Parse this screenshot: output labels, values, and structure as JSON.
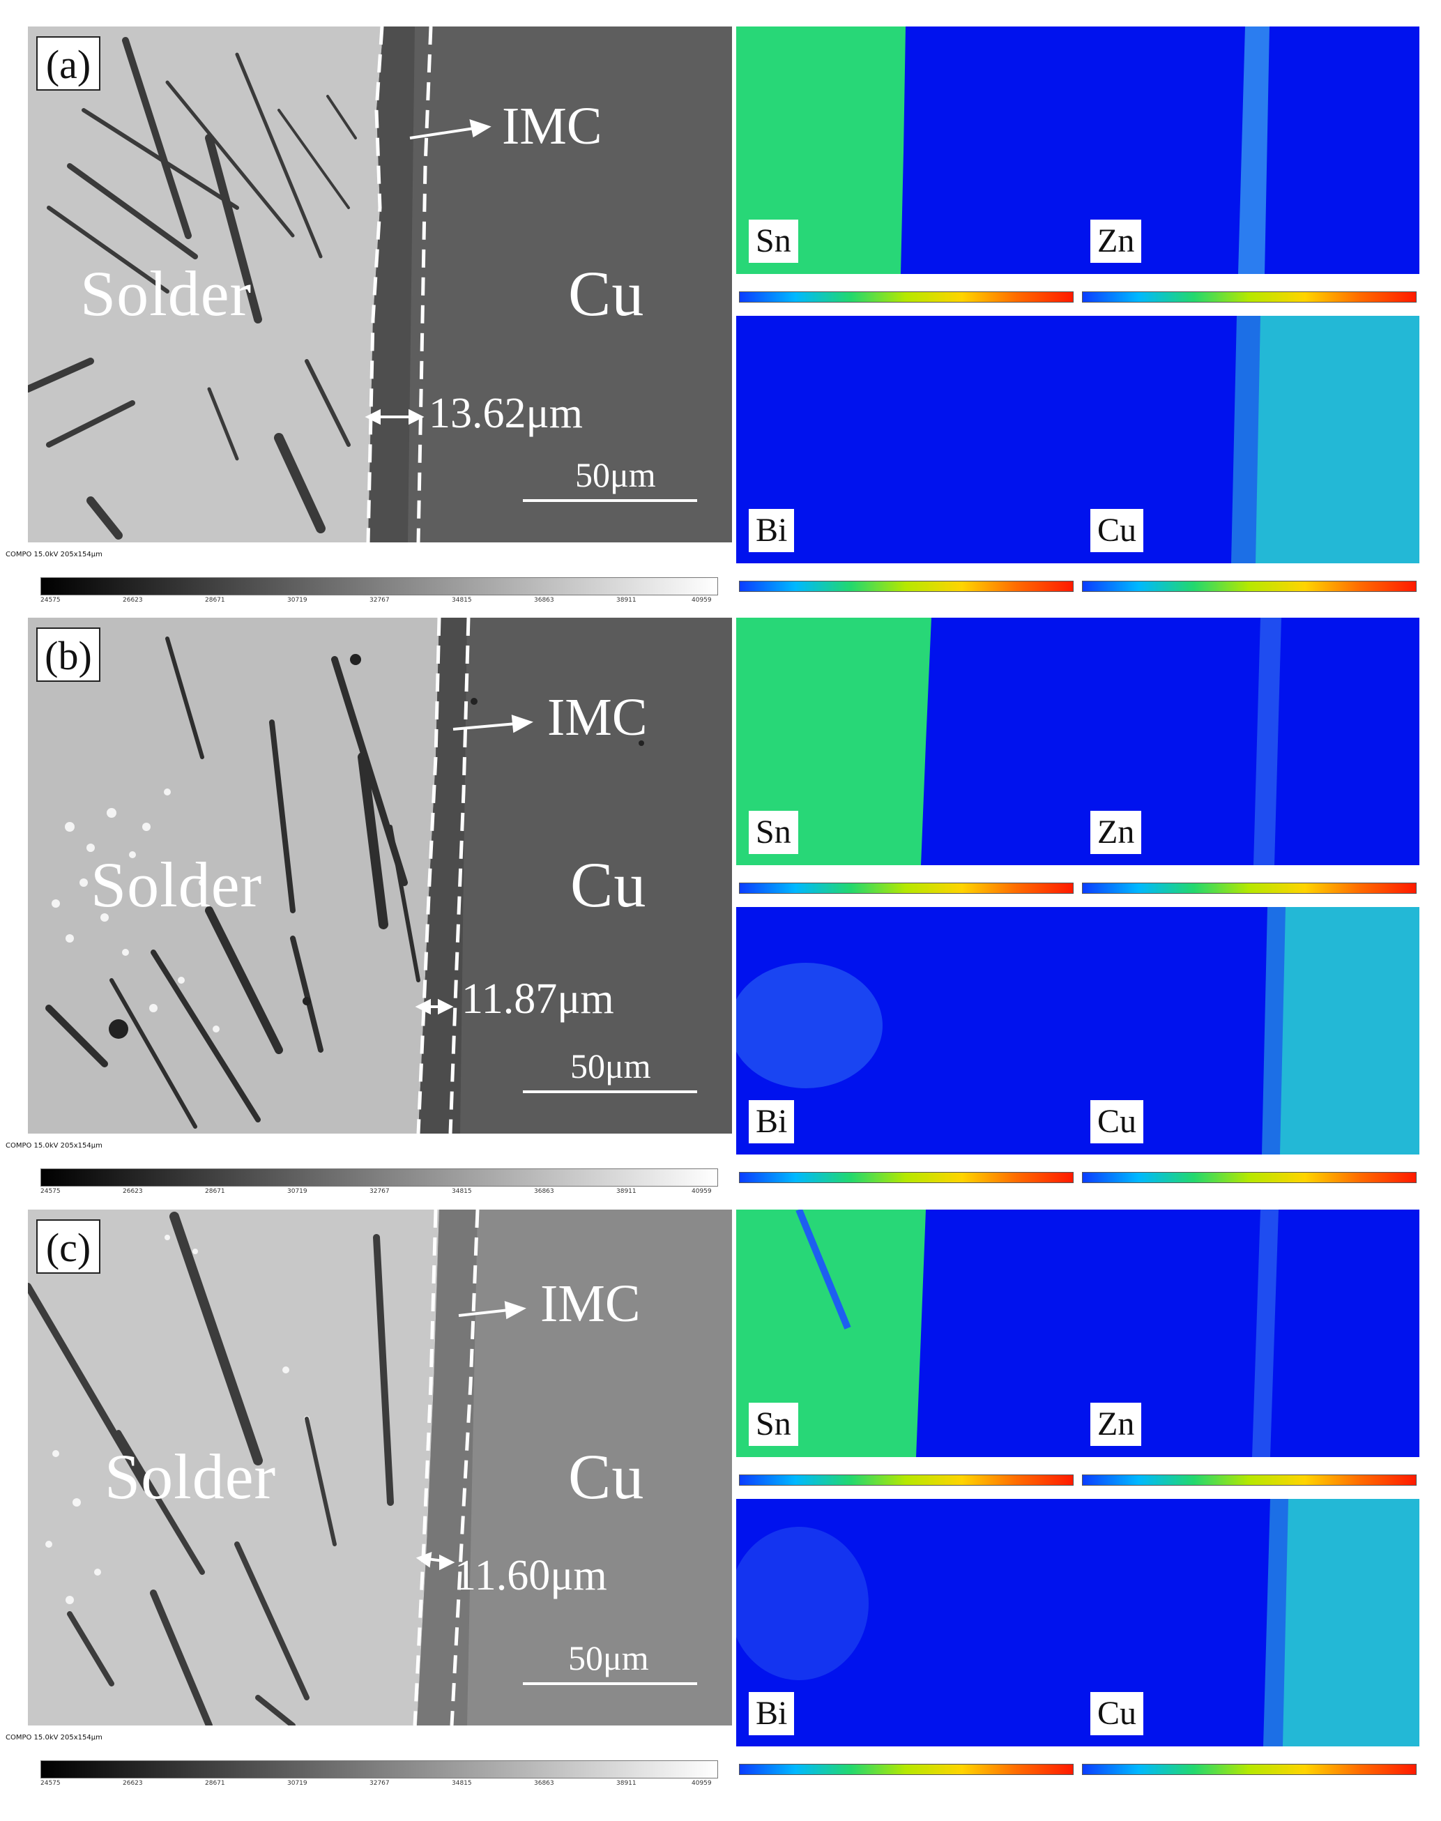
{
  "panels": [
    {
      "label": "(a)",
      "imc": "IMC",
      "solder": "Solder",
      "cu": "Cu",
      "thickness": "13.62μm",
      "scale": "50μm",
      "info": "COMPO 15.0kV 205x154μm",
      "maps": [
        "Sn",
        "Zn",
        "Bi",
        "Cu"
      ]
    },
    {
      "label": "(b)",
      "imc": "IMC",
      "solder": "Solder",
      "cu": "Cu",
      "thickness": "11.87μm",
      "scale": "50μm",
      "info": "COMPO 15.0kV 205x154μm",
      "maps": [
        "Sn",
        "Zn",
        "Bi",
        "Cu"
      ]
    },
    {
      "label": "(c)",
      "imc": "IMC",
      "solder": "Solder",
      "cu": "Cu",
      "thickness": "11.60μm",
      "scale": "50μm",
      "info": "COMPO 15.0kV 205x154μm",
      "maps": [
        "Sn",
        "Zn",
        "Bi",
        "Cu"
      ]
    }
  ],
  "greyscale_ticks": [
    "24575",
    "26623",
    "28671",
    "30719",
    "32767",
    "34815",
    "36863",
    "38911",
    "40959"
  ],
  "colors": {
    "solder": "#c9c9c9",
    "cu": "#5d5d5d",
    "map_background": "#0012ee",
    "sn_phase": "#28d777",
    "cu_phase": "#23b8d6"
  }
}
